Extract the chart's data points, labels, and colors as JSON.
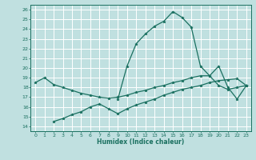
{
  "xlabel": "Humidex (Indice chaleur)",
  "bg_color": "#c0e0e0",
  "grid_color": "#ffffff",
  "line_color": "#1a7060",
  "xlim": [
    -0.5,
    23.5
  ],
  "ylim": [
    13.5,
    26.5
  ],
  "yticks": [
    14,
    15,
    16,
    17,
    18,
    19,
    20,
    21,
    22,
    23,
    24,
    25,
    26
  ],
  "xticks": [
    0,
    1,
    2,
    3,
    4,
    5,
    6,
    7,
    8,
    9,
    10,
    11,
    12,
    13,
    14,
    15,
    16,
    17,
    18,
    19,
    20,
    21,
    22,
    23
  ],
  "series": [
    {
      "x": [
        0,
        1,
        2,
        3,
        4,
        5,
        6,
        7,
        8,
        9,
        10,
        11,
        12,
        13,
        14,
        15,
        16,
        17,
        18,
        19,
        20,
        21,
        22,
        23
      ],
      "y": [
        18.5,
        19.0,
        18.3,
        18.0,
        17.7,
        17.4,
        17.2,
        17.0,
        16.9,
        17.0,
        17.2,
        17.5,
        17.7,
        18.0,
        18.2,
        18.5,
        18.7,
        19.0,
        19.2,
        19.2,
        18.2,
        17.8,
        18.0,
        18.2
      ]
    },
    {
      "x": [
        2,
        3,
        4,
        5,
        6,
        7,
        8,
        9,
        10,
        11,
        12,
        13,
        14,
        15,
        16,
        17,
        18,
        19,
        20,
        21,
        22,
        23
      ],
      "y": [
        14.5,
        14.8,
        15.2,
        15.5,
        16.0,
        16.3,
        15.8,
        15.3,
        15.8,
        16.2,
        16.5,
        16.8,
        17.2,
        17.5,
        17.8,
        18.0,
        18.2,
        18.5,
        18.7,
        18.8,
        18.9,
        18.2
      ]
    },
    {
      "x": [
        9,
        10,
        11,
        12,
        13,
        14,
        15,
        16,
        17,
        18,
        19,
        20,
        21,
        22,
        23
      ],
      "y": [
        16.8,
        20.2,
        22.5,
        23.5,
        24.3,
        24.8,
        25.8,
        25.2,
        24.2,
        20.2,
        19.2,
        20.2,
        18.0,
        16.8,
        18.2
      ]
    }
  ]
}
